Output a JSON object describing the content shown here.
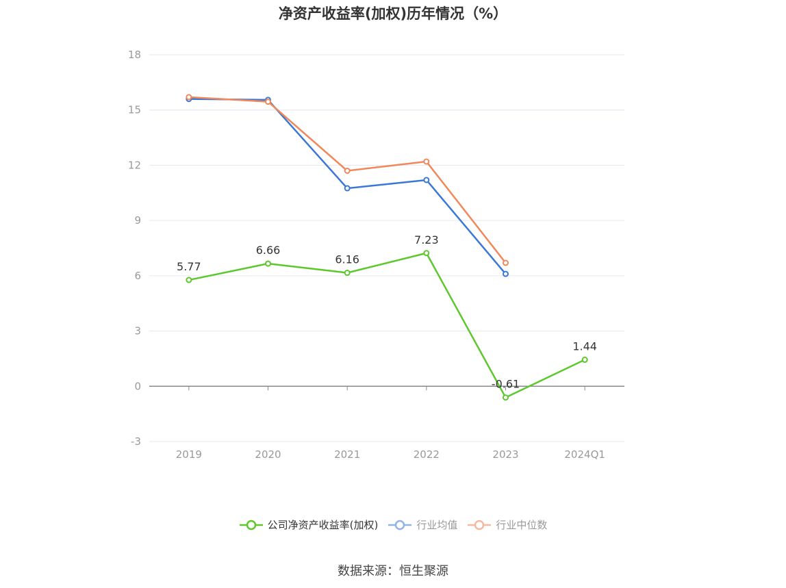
{
  "chart_data": {
    "type": "line",
    "title": "净资产收益率(加权)历年情况（%）",
    "categories": [
      "2019",
      "2020",
      "2021",
      "2022",
      "2023",
      "2024Q1"
    ],
    "y_ticks": [
      "18",
      "15",
      "12",
      "9",
      "6",
      "3",
      "0",
      "-3"
    ],
    "ylim": [
      -3,
      18
    ],
    "grid": true,
    "legend_position": "bottom",
    "series": [
      {
        "name": "公司净资产收益率(加权)",
        "values": [
          5.77,
          6.66,
          6.16,
          7.23,
          -0.61,
          1.44
        ],
        "labels": [
          "5.77",
          "6.66",
          "6.16",
          "7.23",
          "-0.61",
          "1.44"
        ],
        "color": "#5cc82b"
      },
      {
        "name": "行业均值",
        "values": [
          15.6,
          15.55,
          10.75,
          11.2,
          6.1,
          null
        ],
        "color": "#3a78d8"
      },
      {
        "name": "行业中位数",
        "values": [
          15.7,
          15.45,
          11.7,
          12.2,
          6.7,
          null
        ],
        "color": "#f0885a"
      }
    ],
    "legend_colors": [
      "#5cc82b",
      "#91b3e6",
      "#f5b8a0"
    ],
    "legend_text_colors": [
      "#333333",
      "#999999",
      "#999999"
    ]
  },
  "source_note": "数据来源：恒生聚源"
}
